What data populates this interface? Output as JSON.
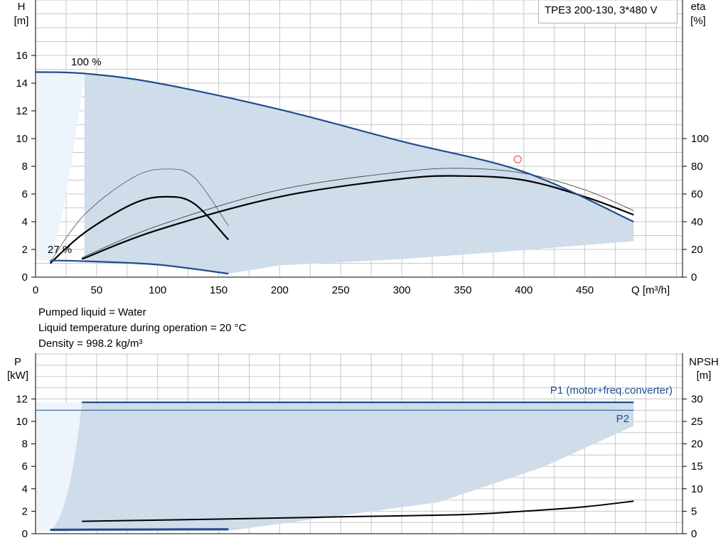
{
  "chart_data": {
    "type": "line",
    "title": "TPE3 200-130, 3*480 V",
    "info": {
      "pumped_liquid": "Pumped liquid = Water",
      "liquid_temperature": "Liquid temperature during operation = 20 °C",
      "density": "Density = 998.2 kg/m³"
    },
    "xlabel": "Q [m³/h]",
    "xlim": [
      0,
      530
    ],
    "xticks": [
      "0",
      "50",
      "100",
      "150",
      "200",
      "250",
      "300",
      "350",
      "400",
      "450"
    ],
    "top_chart": {
      "ylabel_left": [
        "H",
        "[m]"
      ],
      "ylabel_right": [
        "eta",
        "[%]"
      ],
      "ylim_left": [
        0,
        20
      ],
      "ylim_right": [
        0,
        200
      ],
      "yticks_left": [
        "0",
        "2",
        "4",
        "6",
        "8",
        "10",
        "12",
        "14",
        "16"
      ],
      "yticks_right": [
        "0",
        "20",
        "40",
        "60",
        "80",
        "100"
      ],
      "speed_labels": [
        "100 %",
        "27 %"
      ],
      "duty_point": {
        "x": 395,
        "y": 8.5
      },
      "series": [
        {
          "role": "head-max",
          "x": [
            0,
            40,
            100,
            200,
            300,
            400,
            490
          ],
          "values": [
            14.8,
            14.7,
            14.0,
            12.1,
            9.8,
            7.6,
            4.0
          ]
        },
        {
          "role": "head-min",
          "x": [
            12,
            40,
            100,
            158
          ],
          "values": [
            1.2,
            1.15,
            0.9,
            0.25
          ]
        },
        {
          "role": "eta-operating",
          "x": [
            38,
            100,
            200,
            300,
            350,
            400,
            450,
            490
          ],
          "values": [
            1.3,
            3.4,
            5.8,
            7.1,
            7.3,
            7.0,
            5.8,
            4.5
          ]
        },
        {
          "role": "eta-operating-thin",
          "x": [
            38,
            100,
            200,
            300,
            350,
            400,
            450,
            490
          ],
          "values": [
            1.4,
            3.7,
            6.3,
            7.6,
            7.85,
            7.5,
            6.3,
            4.8
          ]
        },
        {
          "role": "eta-min-speed",
          "x": [
            12,
            40,
            80,
            107,
            130,
            158
          ],
          "values": [
            1.0,
            3.2,
            5.3,
            5.8,
            5.3,
            2.7
          ]
        },
        {
          "role": "eta-min-speed-thin",
          "x": [
            12,
            40,
            80,
            107,
            130,
            158
          ],
          "values": [
            1.1,
            4.5,
            7.2,
            7.8,
            7.2,
            3.7
          ]
        }
      ]
    },
    "bottom_chart": {
      "ylabel_left": [
        "P",
        "[kW]"
      ],
      "ylabel_right": [
        "NPSH",
        "[m]"
      ],
      "ylim_left": [
        0,
        12.4
      ],
      "ylim_right": [
        0,
        31
      ],
      "yticks_left": [
        "0",
        "2",
        "4",
        "6",
        "8",
        "10",
        "12"
      ],
      "yticks_right": [
        "0",
        "5",
        "10",
        "15",
        "20",
        "25",
        "30"
      ],
      "series_labels": [
        "P1 (motor+freq.converter)",
        "P2"
      ],
      "series": [
        {
          "role": "P1",
          "x": [
            0,
            490
          ],
          "values": [
            11.7,
            11.7
          ]
        },
        {
          "role": "P2",
          "x": [
            0,
            490
          ],
          "values": [
            11.0,
            11.0
          ]
        },
        {
          "role": "P1-min",
          "x": [
            12,
            158
          ],
          "values": [
            0.35,
            0.4
          ]
        },
        {
          "role": "NPSH",
          "x": [
            38,
            150,
            250,
            350,
            400,
            450,
            490
          ],
          "values": [
            1.1,
            1.3,
            1.5,
            1.7,
            2.0,
            2.4,
            2.9
          ]
        }
      ]
    },
    "colors": {
      "region": "#cfdcea",
      "region_light": "#eef4fb",
      "curve_blue": "#1f4e8c",
      "curve_black": "#000000",
      "grid": "#c8c8c8",
      "duty_point": "#e04040"
    }
  }
}
